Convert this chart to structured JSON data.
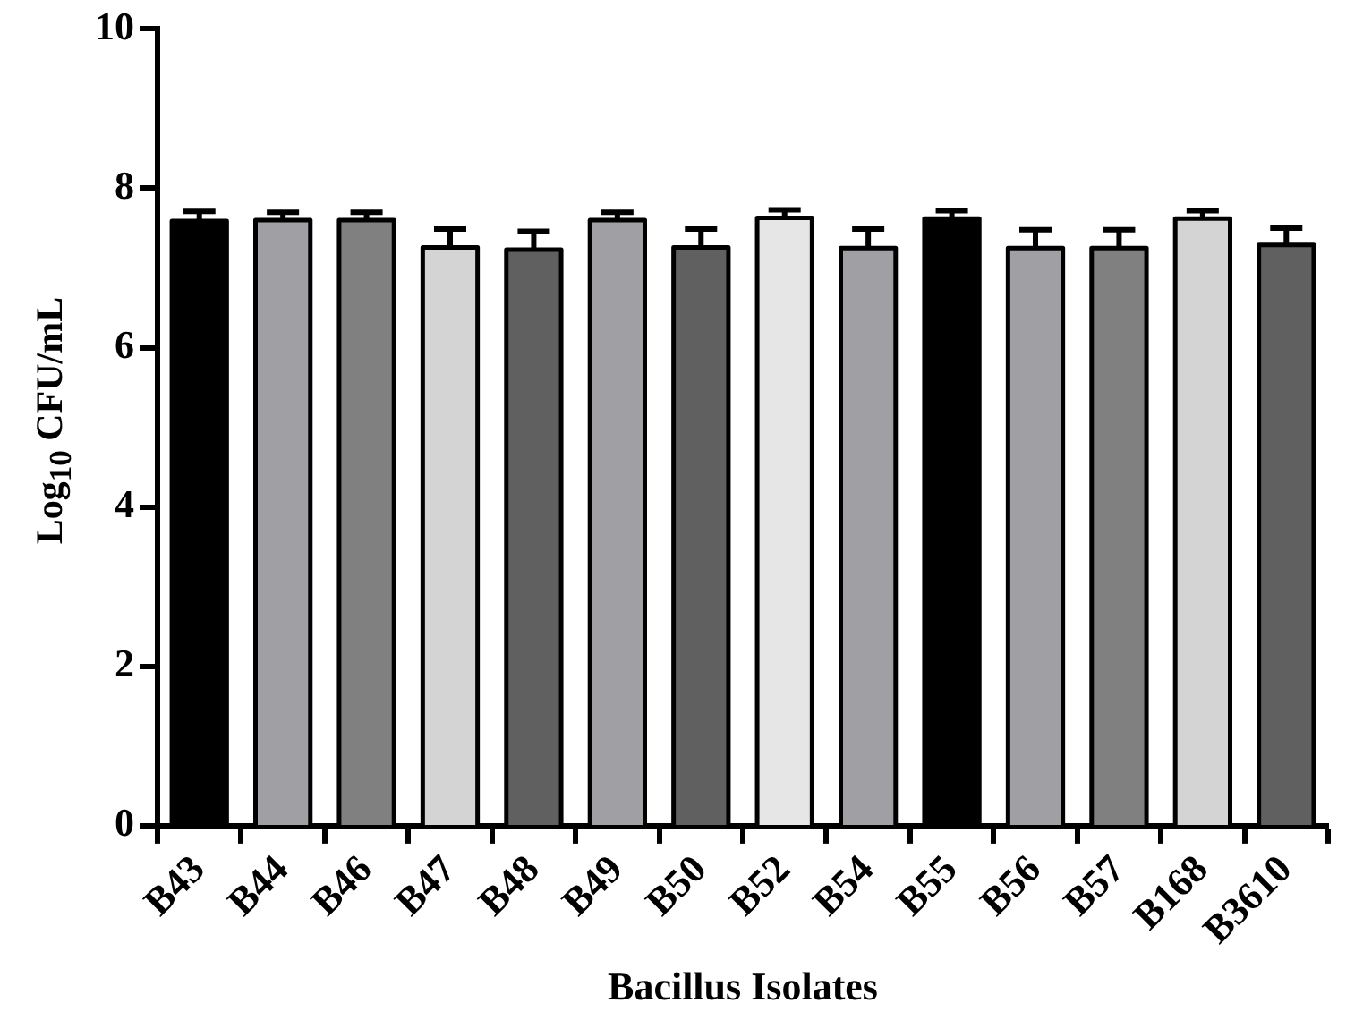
{
  "chart_data": {
    "type": "bar",
    "xlabel": "Bacillus Isolates",
    "ylabel": "Log$_{10}$ CFU/mL",
    "categories": [
      "B43",
      "B44",
      "B46",
      "B47",
      "B48",
      "B49",
      "B50",
      "B52",
      "B54",
      "B55",
      "B56",
      "B57",
      "B168",
      "B3610"
    ],
    "values": [
      7.59,
      7.6,
      7.6,
      7.26,
      7.23,
      7.6,
      7.26,
      7.63,
      7.25,
      7.62,
      7.25,
      7.25,
      7.62,
      7.29
    ],
    "errors": [
      0.12,
      0.1,
      0.1,
      0.23,
      0.23,
      0.1,
      0.23,
      0.1,
      0.24,
      0.1,
      0.23,
      0.23,
      0.1,
      0.21
    ],
    "colors": [
      "#000000",
      "#a0a0a4",
      "#808080",
      "#d4d4d4",
      "#606060",
      "#a0a0a4",
      "#606060",
      "#e6e6e6",
      "#a0a0a4",
      "#000000",
      "#a0a0a4",
      "#808080",
      "#d4d4d4",
      "#606060"
    ],
    "ylim": [
      0,
      10
    ],
    "yticks": [
      0,
      2,
      4,
      6,
      8,
      10
    ],
    "grid": false,
    "legend": false
  }
}
